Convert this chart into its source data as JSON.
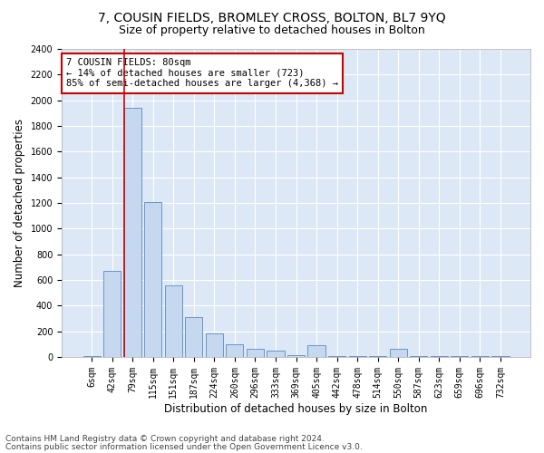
{
  "title": "7, COUSIN FIELDS, BROMLEY CROSS, BOLTON, BL7 9YQ",
  "subtitle": "Size of property relative to detached houses in Bolton",
  "xlabel": "Distribution of detached houses by size in Bolton",
  "ylabel": "Number of detached properties",
  "categories": [
    "6sqm",
    "42sqm",
    "79sqm",
    "115sqm",
    "151sqm",
    "187sqm",
    "224sqm",
    "260sqm",
    "296sqm",
    "333sqm",
    "369sqm",
    "405sqm",
    "442sqm",
    "478sqm",
    "514sqm",
    "550sqm",
    "587sqm",
    "623sqm",
    "659sqm",
    "696sqm",
    "732sqm"
  ],
  "values": [
    8,
    670,
    1940,
    1210,
    560,
    310,
    185,
    100,
    65,
    50,
    15,
    90,
    5,
    5,
    5,
    60,
    5,
    5,
    5,
    5,
    5
  ],
  "bar_color": "#c5d8f0",
  "bar_edge_color": "#5a8abf",
  "red_line_index": 2,
  "annotation_text": "7 COUSIN FIELDS: 80sqm\n← 14% of detached houses are smaller (723)\n85% of semi-detached houses are larger (4,368) →",
  "annotation_box_facecolor": "#ffffff",
  "annotation_box_edgecolor": "#cc0000",
  "ylim": [
    0,
    2400
  ],
  "yticks": [
    0,
    200,
    400,
    600,
    800,
    1000,
    1200,
    1400,
    1600,
    1800,
    2000,
    2200,
    2400
  ],
  "footer1": "Contains HM Land Registry data © Crown copyright and database right 2024.",
  "footer2": "Contains public sector information licensed under the Open Government Licence v3.0.",
  "fig_bg_color": "#ffffff",
  "plot_bg_color": "#dce8f5",
  "title_fontsize": 10,
  "subtitle_fontsize": 9,
  "axis_label_fontsize": 8.5,
  "tick_fontsize": 7,
  "annotation_fontsize": 7.5,
  "footer_fontsize": 6.5,
  "grid_color": "#ffffff"
}
